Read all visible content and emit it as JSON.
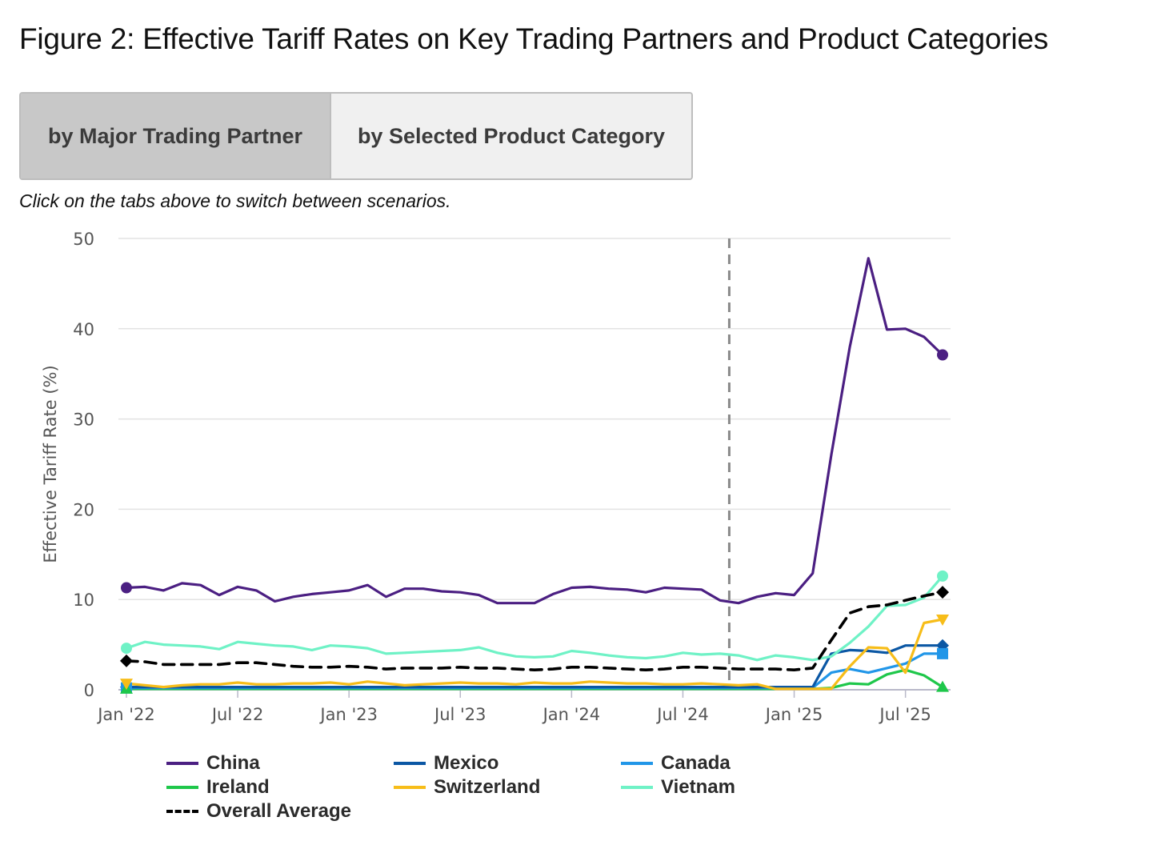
{
  "title": "Figure 2: Effective Tariff Rates on Key Trading Partners and Product Categories",
  "tabs": {
    "active_label": "by Major Trading Partner",
    "inactive_label": "by Selected Product Category"
  },
  "hint": "Click on the tabs above to switch between scenarios.",
  "chart_data": {
    "type": "line",
    "ylabel": "Effective Tariff Rate (%)",
    "ylim": [
      0,
      50
    ],
    "yticks": [
      0,
      10,
      20,
      30,
      40,
      50
    ],
    "xlim": [
      0,
      45
    ],
    "x_ticks": [
      {
        "label": "Jan '22",
        "x": 0
      },
      {
        "label": "Jul '22",
        "x": 6
      },
      {
        "label": "Jan '23",
        "x": 12
      },
      {
        "label": "Jul '23",
        "x": 18
      },
      {
        "label": "Jan '24",
        "x": 24
      },
      {
        "label": "Jul '24",
        "x": 30
      },
      {
        "label": "Jan '25",
        "x": 36
      },
      {
        "label": "Jul '25",
        "x": 42
      }
    ],
    "reference_line_x": 32.5,
    "x": [
      0,
      1,
      2,
      3,
      4,
      5,
      6,
      7,
      8,
      9,
      10,
      11,
      12,
      13,
      14,
      15,
      16,
      17,
      18,
      19,
      20,
      21,
      22,
      23,
      24,
      25,
      26,
      27,
      28,
      29,
      30,
      31,
      32,
      33,
      34,
      35,
      36,
      37,
      38,
      39,
      40,
      41,
      42,
      43,
      44
    ],
    "series": [
      {
        "name": "China",
        "color": "#4b1f82",
        "dash": false,
        "marker": "circle",
        "values": [
          11.3,
          11.4,
          11.0,
          11.8,
          11.6,
          10.5,
          11.4,
          11.0,
          9.8,
          10.3,
          10.6,
          10.8,
          11.0,
          11.6,
          10.3,
          11.2,
          11.2,
          10.9,
          10.8,
          10.5,
          9.6,
          9.6,
          9.6,
          10.6,
          11.3,
          11.4,
          11.2,
          11.1,
          10.8,
          11.3,
          11.2,
          11.1,
          9.9,
          9.6,
          10.3,
          10.7,
          10.5,
          12.9,
          26.0,
          38.0,
          47.8,
          39.9,
          40.0,
          39.1,
          37.1
        ]
      },
      {
        "name": "Mexico",
        "color": "#0b57a4",
        "dash": false,
        "marker": "diamond",
        "values": [
          0.3,
          0.3,
          0.3,
          0.3,
          0.3,
          0.3,
          0.3,
          0.3,
          0.3,
          0.3,
          0.3,
          0.3,
          0.3,
          0.3,
          0.3,
          0.3,
          0.3,
          0.3,
          0.3,
          0.3,
          0.3,
          0.3,
          0.3,
          0.3,
          0.3,
          0.3,
          0.3,
          0.3,
          0.3,
          0.3,
          0.3,
          0.3,
          0.3,
          0.3,
          0.3,
          0.3,
          0.3,
          0.3,
          4.0,
          4.4,
          4.3,
          4.1,
          4.9,
          4.9,
          4.9
        ]
      },
      {
        "name": "Canada",
        "color": "#2196e8",
        "dash": false,
        "marker": "square",
        "values": [
          0.2,
          0.2,
          0.2,
          0.2,
          0.2,
          0.2,
          0.2,
          0.2,
          0.2,
          0.2,
          0.2,
          0.2,
          0.2,
          0.2,
          0.2,
          0.2,
          0.2,
          0.2,
          0.2,
          0.2,
          0.2,
          0.2,
          0.2,
          0.2,
          0.2,
          0.2,
          0.2,
          0.2,
          0.2,
          0.2,
          0.2,
          0.2,
          0.2,
          0.2,
          0.2,
          0.2,
          0.2,
          0.2,
          1.9,
          2.3,
          1.9,
          2.4,
          2.9,
          4.0,
          4.0
        ]
      },
      {
        "name": "Ireland",
        "color": "#1ec74a",
        "dash": false,
        "marker": "triangle",
        "values": [
          0.1,
          0.1,
          0.1,
          0.1,
          0.1,
          0.1,
          0.1,
          0.1,
          0.1,
          0.1,
          0.1,
          0.1,
          0.1,
          0.1,
          0.1,
          0.1,
          0.1,
          0.1,
          0.1,
          0.1,
          0.1,
          0.1,
          0.1,
          0.1,
          0.1,
          0.1,
          0.1,
          0.1,
          0.1,
          0.1,
          0.1,
          0.1,
          0.1,
          0.1,
          0.1,
          0.1,
          0.1,
          0.1,
          0.2,
          0.7,
          0.6,
          1.7,
          2.2,
          1.6,
          0.3
        ]
      },
      {
        "name": "Switzerland",
        "color": "#f7bd19",
        "dash": false,
        "marker": "triangle-down",
        "values": [
          0.7,
          0.5,
          0.3,
          0.5,
          0.6,
          0.6,
          0.8,
          0.6,
          0.6,
          0.7,
          0.7,
          0.8,
          0.6,
          0.9,
          0.7,
          0.5,
          0.6,
          0.7,
          0.8,
          0.7,
          0.7,
          0.6,
          0.8,
          0.7,
          0.7,
          0.9,
          0.8,
          0.7,
          0.7,
          0.6,
          0.6,
          0.7,
          0.6,
          0.5,
          0.6,
          0.1,
          0.1,
          0.1,
          0.1,
          2.6,
          4.7,
          4.6,
          1.9,
          7.4,
          7.8
        ]
      },
      {
        "name": "Vietnam",
        "color": "#6ff2c6",
        "dash": false,
        "marker": "circle",
        "values": [
          4.6,
          5.3,
          5.0,
          4.9,
          4.8,
          4.5,
          5.3,
          5.1,
          4.9,
          4.8,
          4.4,
          4.9,
          4.8,
          4.6,
          4.0,
          4.1,
          4.2,
          4.3,
          4.4,
          4.7,
          4.1,
          3.7,
          3.6,
          3.7,
          4.3,
          4.1,
          3.8,
          3.6,
          3.5,
          3.7,
          4.1,
          3.9,
          4.0,
          3.8,
          3.3,
          3.8,
          3.6,
          3.3,
          3.7,
          5.2,
          7.0,
          9.3,
          9.4,
          10.2,
          12.6
        ]
      },
      {
        "name": "Overall Average",
        "color": "#000000",
        "dash": true,
        "marker": "diamond",
        "values": [
          3.2,
          3.1,
          2.8,
          2.8,
          2.8,
          2.8,
          3.0,
          3.0,
          2.8,
          2.6,
          2.5,
          2.5,
          2.6,
          2.5,
          2.3,
          2.4,
          2.4,
          2.4,
          2.5,
          2.4,
          2.4,
          2.3,
          2.2,
          2.3,
          2.5,
          2.5,
          2.4,
          2.3,
          2.2,
          2.3,
          2.5,
          2.5,
          2.4,
          2.3,
          2.3,
          2.3,
          2.2,
          2.4,
          5.5,
          8.5,
          9.2,
          9.4,
          9.9,
          10.4,
          10.8
        ]
      }
    ]
  },
  "legend": {
    "items": [
      "China",
      "Mexico",
      "Canada",
      "Ireland",
      "Switzerland",
      "Vietnam",
      "Overall Average"
    ]
  }
}
